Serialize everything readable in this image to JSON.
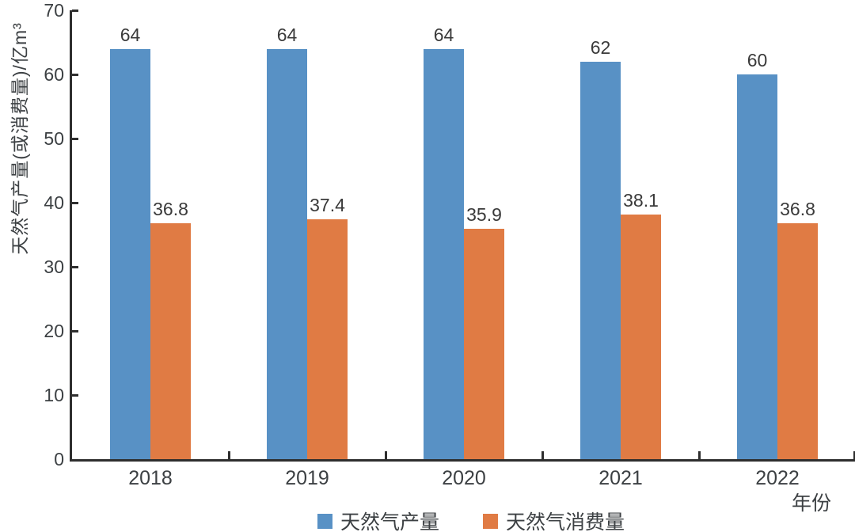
{
  "chart_data": {
    "type": "bar",
    "title": "",
    "categories": [
      "2018",
      "2019",
      "2020",
      "2021",
      "2022"
    ],
    "series": [
      {
        "name": "天然气产量",
        "color": "#5891C5",
        "values": [
          64,
          64,
          64,
          62,
          60
        ],
        "labels": [
          "64",
          "64",
          "64",
          "62",
          "60"
        ]
      },
      {
        "name": "天然气消费量",
        "color": "#E07B44",
        "values": [
          36.8,
          37.4,
          35.9,
          38.1,
          36.8
        ],
        "labels": [
          "36.8",
          "37.4",
          "35.9",
          "38.1",
          "36.8"
        ]
      }
    ],
    "xlabel": "年份",
    "ylabel": "天然气产量(或消费量)/亿m³",
    "ylim": [
      0,
      70
    ],
    "yticks": [
      0,
      10,
      20,
      30,
      40,
      50,
      60,
      70
    ],
    "grid": false,
    "legend_position": "bottom",
    "background": "#FFFFFF",
    "axis_color": "#2E2E2E",
    "text_color": "#3C4043",
    "data_labels_shown": true
  }
}
